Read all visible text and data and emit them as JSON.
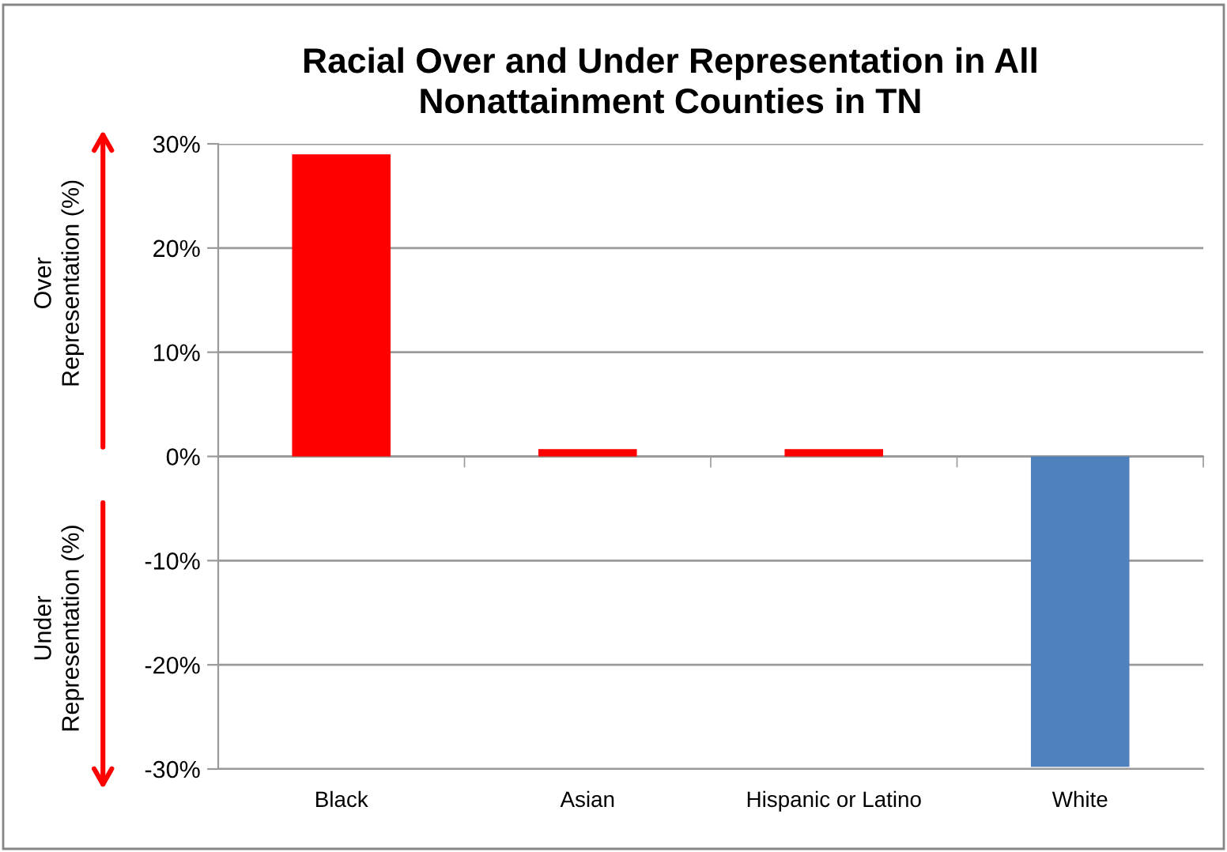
{
  "chart_data": {
    "type": "bar",
    "title": "Racial Over and Under Representation in All\nNonattainment Counties in TN",
    "ylabel": "Over\nRepresentation (%)",
    "annotations": [
      "Under\nRepresentation (%)"
    ],
    "categories": [
      "Black",
      "Asian",
      "Hispanic or Latino",
      "White"
    ],
    "values": [
      29,
      0.7,
      0.7,
      -29.8
    ],
    "colors": [
      "#ff0000",
      "#ff0000",
      "#ff0000",
      "#4f81bd"
    ],
    "ylim": [
      -30,
      30
    ],
    "yticks": [
      {
        "value": -30,
        "label": "-30%"
      },
      {
        "value": -20,
        "label": "-20%"
      },
      {
        "value": -10,
        "label": "-10%"
      },
      {
        "value": 0,
        "label": "0%"
      },
      {
        "value": 10,
        "label": "10%"
      },
      {
        "value": 20,
        "label": "20%"
      },
      {
        "value": 30,
        "label": "30%"
      }
    ],
    "grid": "y"
  }
}
